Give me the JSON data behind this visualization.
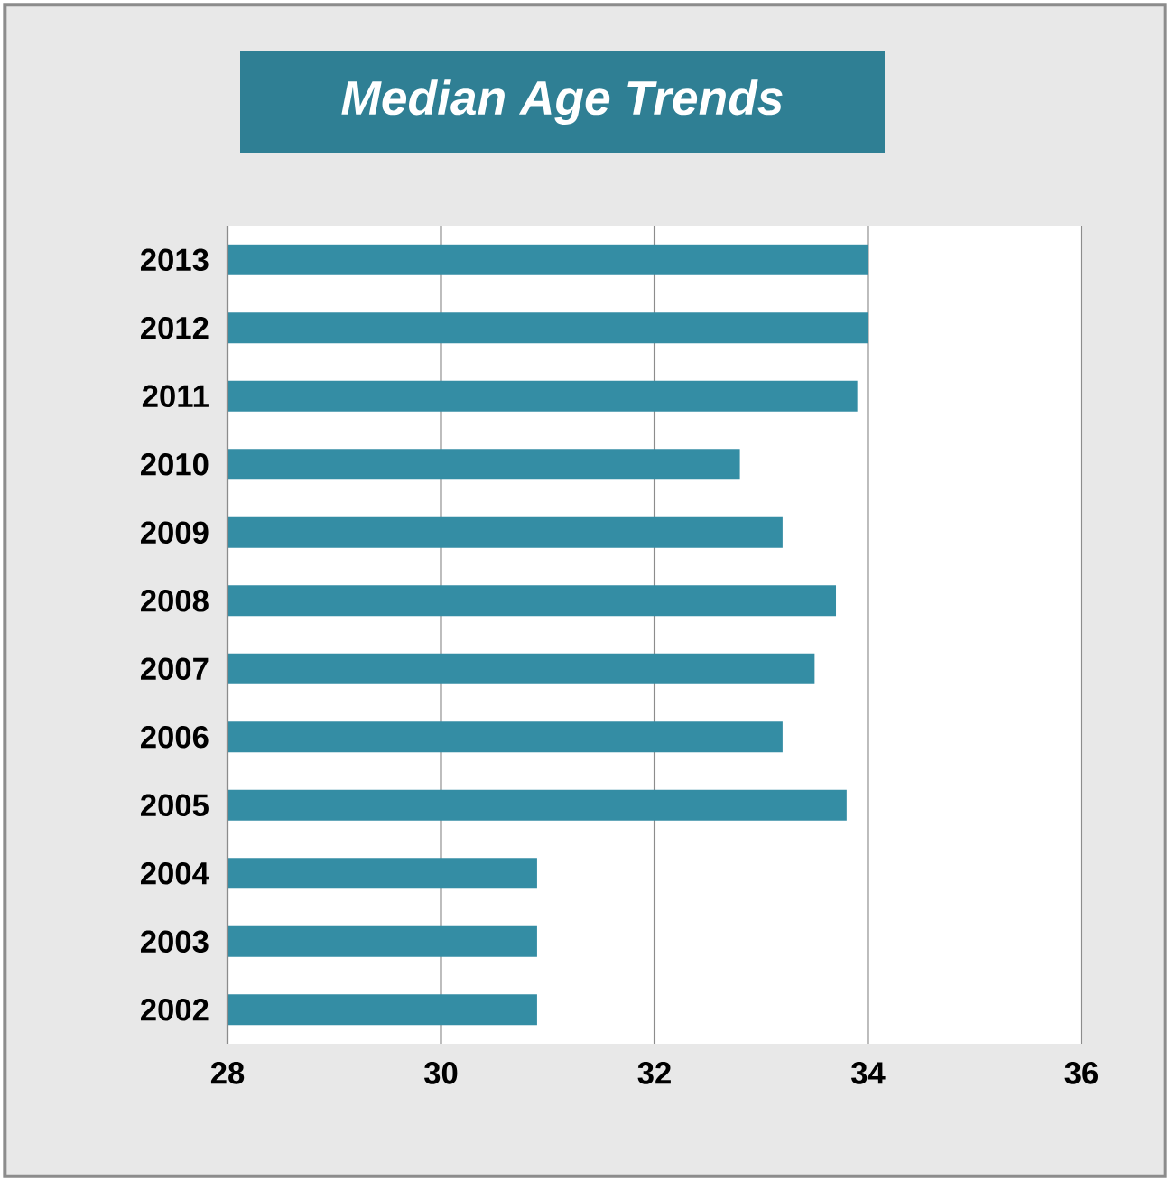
{
  "chart_data": {
    "type": "bar",
    "orientation": "horizontal",
    "title": "Median Age Trends",
    "categories": [
      "2013",
      "2012",
      "2011",
      "2010",
      "2009",
      "2008",
      "2007",
      "2006",
      "2005",
      "2004",
      "2003",
      "2002"
    ],
    "values": [
      34.0,
      34.0,
      33.9,
      32.8,
      33.2,
      33.7,
      33.5,
      33.2,
      33.8,
      30.9,
      30.9,
      30.9
    ],
    "color": "#348da4",
    "xlim": [
      28,
      36
    ],
    "xticks": [
      28,
      30,
      32,
      34,
      36
    ],
    "grid": "x"
  }
}
